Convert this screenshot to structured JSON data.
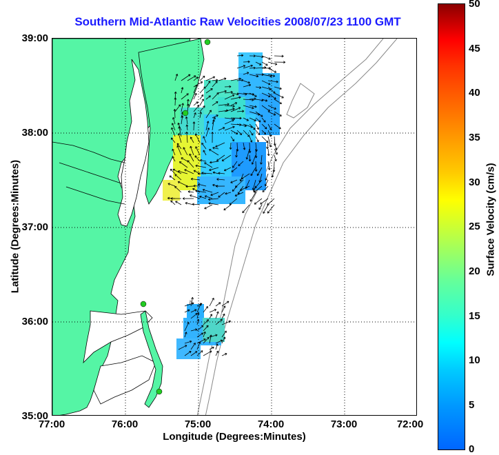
{
  "title": "Southern Mid-Atlantic Raw Velocities 2008/07/23 1100 GMT",
  "x_axis": {
    "label": "Longitude (Degrees:Minutes)",
    "ticks": [
      "77:00",
      "76:00",
      "75:00",
      "74:00",
      "73:00",
      "72:00"
    ]
  },
  "y_axis": {
    "label": "Latitude (Degrees:Minutes)",
    "ticks": [
      "39:00",
      "38:00",
      "37:00",
      "36:00",
      "35:00"
    ]
  },
  "colorbar": {
    "label": "Surface Velocity (cm/s)",
    "ticks": [
      "50",
      "45",
      "40",
      "35",
      "30",
      "25",
      "20",
      "15",
      "10",
      "5",
      "0"
    ],
    "min": 0,
    "max": 50
  },
  "colors": {
    "land": "#55f5a5",
    "water": "#ffffff",
    "coastline": "#000000",
    "bathymetry": "#888888",
    "gridline": "#000000",
    "station": "#22cc22",
    "title": "#1a1aff"
  },
  "map_extent": {
    "lon_min": -77,
    "lon_max": -72,
    "lat_min": 35,
    "lat_max": 39
  },
  "grid": "dotted"
}
